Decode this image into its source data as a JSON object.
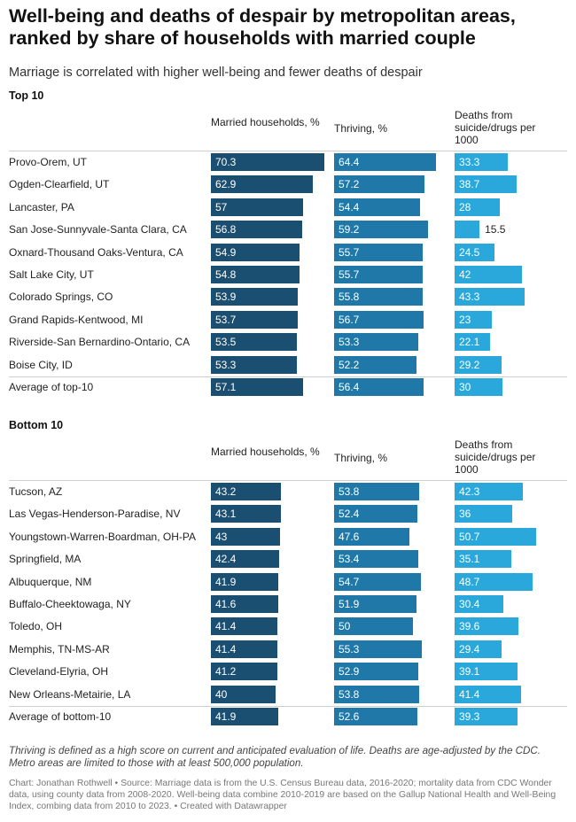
{
  "title": "Well-being and deaths of despair by metropolitan areas, ranked by share of households with married couple",
  "subtitle": "Marriage is correlated with higher well-being and fewer deaths of despair",
  "columns": {
    "married": "Married households, %",
    "thriving": "Thriving, %",
    "deaths": "Deaths from suicide/drugs per 1000"
  },
  "colors": {
    "married": "#1b4f72",
    "thriving": "#1f78a8",
    "deaths": "#2aa8dc",
    "value_text_on_bar": "#ffffff",
    "value_text_outside": "#222222"
  },
  "note": "Thriving is defined as a high score on current and anticipated evaluation of life. Deaths are age-adjusted by the CDC. Metro areas are limited to those with at least 500,000 population.",
  "source": "Chart: Jonathan Rothwell • Source: Marriage data is from the U.S. Census Bureau data, 2016-2020; mortality data from CDC Wonder data, using county data from 2008-2020. Well-being data combine 2010-2019 are based on the Gallup National Health and Well-Being Index, combing data from 2010 to 2023. • Created with Datawrapper",
  "chart_data": [
    {
      "type": "bar",
      "title": "Top 10",
      "categories": [
        "Provo-Orem, UT",
        "Ogden-Clearfield, UT",
        "Lancaster, PA",
        "San Jose-Sunnyvale-Santa Clara, CA",
        "Oxnard-Thousand Oaks-Ventura, CA",
        "Salt Lake City, UT",
        "Colorado Springs, CO",
        "Grand Rapids-Kentwood, MI",
        "Riverside-San Bernardino-Ontario, CA",
        "Boise City, ID",
        "Average of top-10"
      ],
      "series": [
        {
          "name": "Married households, %",
          "values": [
            70.3,
            62.9,
            57,
            56.8,
            54.9,
            54.8,
            53.9,
            53.7,
            53.5,
            53.3,
            57.1
          ]
        },
        {
          "name": "Thriving, %",
          "values": [
            64.4,
            57.2,
            54.4,
            59.2,
            55.7,
            55.7,
            55.8,
            56.7,
            53.3,
            52.2,
            56.4
          ]
        },
        {
          "name": "Deaths from suicide/drugs per 1000",
          "values": [
            33.3,
            38.7,
            28,
            15.5,
            24.5,
            42,
            43.3,
            23,
            22.1,
            29.2,
            30
          ]
        }
      ]
    },
    {
      "type": "bar",
      "title": "Bottom 10",
      "categories": [
        "Tucson, AZ",
        "Las Vegas-Henderson-Paradise, NV",
        "Youngstown-Warren-Boardman, OH-PA",
        "Springfield, MA",
        "Albuquerque, NM",
        "Buffalo-Cheektowaga, NY",
        "Toledo, OH",
        "Memphis, TN-MS-AR",
        "Cleveland-Elyria, OH",
        "New Orleans-Metairie, LA",
        "Average of bottom-10"
      ],
      "series": [
        {
          "name": "Married households, %",
          "values": [
            43.2,
            43.1,
            43,
            42.4,
            41.9,
            41.6,
            41.4,
            41.4,
            41.2,
            40,
            41.9
          ]
        },
        {
          "name": "Thriving, %",
          "values": [
            53.8,
            52.4,
            47.6,
            53.4,
            54.7,
            51.9,
            50,
            55.3,
            52.9,
            53.8,
            52.6
          ]
        },
        {
          "name": "Deaths from suicide/drugs per 1000",
          "values": [
            42.3,
            36,
            50.7,
            35.1,
            48.7,
            30.4,
            39.6,
            29.4,
            39.1,
            41.4,
            39.3
          ]
        }
      ]
    }
  ]
}
